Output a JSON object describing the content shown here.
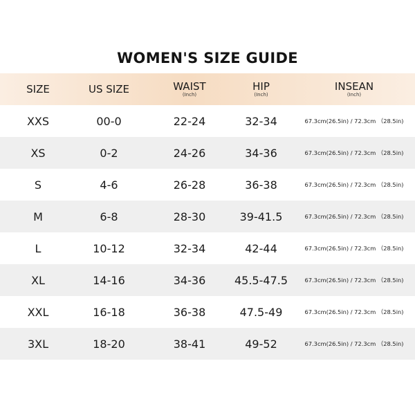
{
  "title": "WOMEN'S SIZE GUIDE",
  "header": {
    "size": "SIZE",
    "us_size": "US SIZE",
    "waist": "WAIST",
    "waist_unit": "(Inch)",
    "hip": "HIP",
    "hip_unit": "(Inch)",
    "insean": "INSEAN",
    "insean_unit": "(Inch)"
  },
  "rows": [
    {
      "size": "XXS",
      "us": "00-0",
      "waist": "22-24",
      "hip": "32-34",
      "inseam": "67.3cm(26.5in) / 72.3cm （28.5in)"
    },
    {
      "size": "XS",
      "us": "0-2",
      "waist": "24-26",
      "hip": "34-36",
      "inseam": "67.3cm(26.5in) / 72.3cm （28.5in)"
    },
    {
      "size": "S",
      "us": "4-6",
      "waist": "26-28",
      "hip": "36-38",
      "inseam": "67.3cm(26.5in) / 72.3cm （28.5in)"
    },
    {
      "size": "M",
      "us": "6-8",
      "waist": "28-30",
      "hip": "39-41.5",
      "inseam": "67.3cm(26.5in) / 72.3cm （28.5in)"
    },
    {
      "size": "L",
      "us": "10-12",
      "waist": "32-34",
      "hip": "42-44",
      "inseam": "67.3cm(26.5in) / 72.3cm （28.5in)"
    },
    {
      "size": "XL",
      "us": "14-16",
      "waist": "34-36",
      "hip": "45.5-47.5",
      "inseam": "67.3cm(26.5in) / 72.3cm （28.5in)"
    },
    {
      "size": "XXL",
      "us": "16-18",
      "waist": "36-38",
      "hip": "47.5-49",
      "inseam": "67.3cm(26.5in) / 72.3cm （28.5in)"
    },
    {
      "size": "3XL",
      "us": "18-20",
      "waist": "38-41",
      "hip": "49-52",
      "inseam": "67.3cm(26.5in) / 72.3cm （28.5in)"
    }
  ],
  "colors": {
    "header_bg": "#f6dcc2",
    "shade_row": "#efefef"
  }
}
